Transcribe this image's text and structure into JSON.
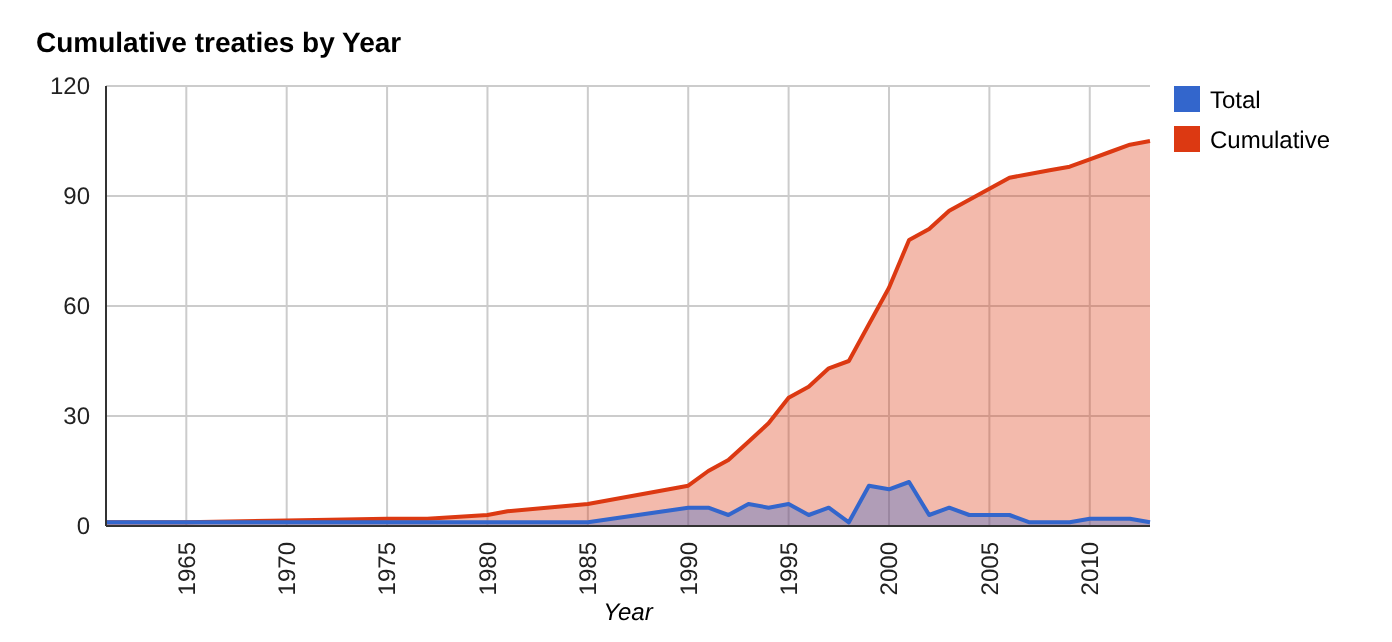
{
  "chart_data": {
    "type": "area",
    "title": "Cumulative treaties by Year",
    "xlabel": "Year",
    "xlim": [
      1961,
      2013
    ],
    "xticks": [
      1965,
      1970,
      1975,
      1980,
      1985,
      1990,
      1995,
      2000,
      2005,
      2010
    ],
    "ylim": [
      0,
      120
    ],
    "yticks": [
      0,
      30,
      60,
      90,
      120
    ],
    "grid": true,
    "legend": "top right",
    "series": [
      {
        "name": "Total",
        "color": "#3366cc",
        "x": [
          1961,
          1965,
          1970,
          1975,
          1980,
          1985,
          1990,
          1991,
          1992,
          1993,
          1994,
          1995,
          1996,
          1997,
          1998,
          1999,
          2000,
          2001,
          2002,
          2003,
          2004,
          2005,
          2006,
          2007,
          2008,
          2009,
          2010,
          2011,
          2012,
          2013
        ],
        "values": [
          1,
          1,
          1,
          1,
          1,
          1,
          5,
          5,
          3,
          6,
          5,
          6,
          3,
          5,
          1,
          11,
          10,
          12,
          3,
          5,
          3,
          3,
          3,
          1,
          1,
          1,
          2,
          2,
          2,
          1
        ]
      },
      {
        "name": "Cumulative",
        "color": "#dc3912",
        "x": [
          1961,
          1965,
          1970,
          1975,
          1977,
          1980,
          1981,
          1985,
          1990,
          1991,
          1992,
          1993,
          1994,
          1995,
          1996,
          1997,
          1998,
          1999,
          2000,
          2001,
          2002,
          2003,
          2004,
          2005,
          2006,
          2007,
          2008,
          2009,
          2010,
          2011,
          2012,
          2013
        ],
        "values": [
          1,
          1,
          1.5,
          2,
          2,
          3,
          4,
          6,
          11,
          15,
          18,
          23,
          28,
          35,
          38,
          43,
          45,
          55,
          65,
          78,
          81,
          86,
          89,
          92,
          95,
          96,
          97,
          98,
          100,
          102,
          104,
          105
        ]
      }
    ]
  }
}
